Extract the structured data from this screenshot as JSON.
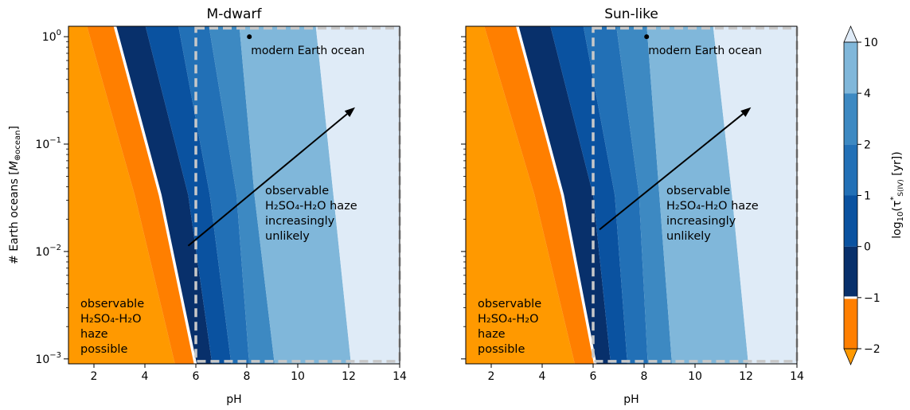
{
  "chart_data": {
    "type": "heatmap",
    "xlabel": "pH",
    "ylabel_main": "# Earth oceans [",
    "ylabel_sym": "M",
    "ylabel_sub": "⊕ocean",
    "ylabel_end": "]",
    "xlim": [
      1,
      14
    ],
    "ylim": [
      0.0009,
      1.25
    ],
    "y_scale": "log",
    "x_ticks": [
      2,
      4,
      6,
      8,
      10,
      12,
      14
    ],
    "y_ticks": [
      {
        "value": 1,
        "base": "10",
        "exp": "0"
      },
      {
        "value": 0.1,
        "base": "10",
        "exp": "−1"
      },
      {
        "value": 0.01,
        "base": "10",
        "exp": "−2"
      },
      {
        "value": 0.001,
        "base": "10",
        "exp": "−3"
      }
    ],
    "colorbar": {
      "label": "log₁₀(τ*S(IV) [yr])",
      "ticks": [
        "−2",
        "−1",
        "0",
        "1",
        "2",
        "4",
        "10"
      ],
      "levels": [
        {
          "from": "−2",
          "to": "−1",
          "color": "#ff7f00"
        },
        {
          "from": "−1",
          "to": "0",
          "color": "#08306b"
        },
        {
          "from": "0",
          "to": "1",
          "color": "#0a52a0"
        },
        {
          "from": "1",
          "to": "2",
          "color": "#2270b6"
        },
        {
          "from": "2",
          "to": "4",
          "color": "#3d89c2"
        },
        {
          "from": "4",
          "to": "10",
          "color": "#80b7da"
        }
      ],
      "extend_high_color": "#dfebf7",
      "extend_low_color": "#ff9900"
    },
    "panels": [
      {
        "title": "M-dwarf",
        "point": {
          "x": 8.1,
          "y": 1.0,
          "label": "modern Earth ocean"
        },
        "haze_note": [
          "observable",
          "H₂SO₄-H₂O",
          "haze",
          "possible"
        ],
        "arrow": {
          "from": [
            5.7,
            0.0113
          ],
          "to": [
            12.25,
            0.22
          ]
        },
        "arrow_note": [
          "observable",
          "H₂SO₄-H₂O haze",
          "increasingly",
          "unlikely"
        ],
        "dashed_box": {
          "x": [
            6.0,
            14.0
          ],
          "y": [
            0.00095,
            1.2
          ]
        },
        "band_colors": [
          "#ff9900",
          "#ff7f00",
          "#08306b",
          "#0a52a0",
          "#2270b6",
          "#3d89c2",
          "#80b7da",
          "#dfebf7"
        ],
        "boundaries": [
          {
            "x_top": 1.7,
            "x_mid": 3.6,
            "x_bottom": 5.2
          },
          {
            "x_top": 2.8,
            "x_mid": 4.6,
            "x_bottom": 6.0
          },
          {
            "x_top": 4.0,
            "x_mid": 5.7,
            "x_bottom": 6.65
          },
          {
            "x_top": 5.3,
            "x_mid": 6.55,
            "x_bottom": 7.4
          },
          {
            "x_top": 6.5,
            "x_mid": 7.6,
            "x_bottom": 8.1
          },
          {
            "x_top": 7.7,
            "x_mid": 8.3,
            "x_bottom": 9.1
          },
          {
            "x_top": 10.7,
            "x_mid": 11.4,
            "x_bottom": 12.1
          }
        ],
        "white_line_index": 1
      },
      {
        "title": "Sun-like",
        "point": {
          "x": 8.1,
          "y": 1.0,
          "label": "modern Earth ocean"
        },
        "haze_note": [
          "observable",
          "H₂SO₄-H₂O",
          "haze",
          "possible"
        ],
        "arrow": {
          "from": [
            6.25,
            0.016
          ],
          "to": [
            12.2,
            0.22
          ]
        },
        "arrow_note": [
          "observable",
          "H₂SO₄-H₂O haze",
          "increasingly",
          "unlikely"
        ],
        "dashed_box": {
          "x": [
            6.0,
            14.0
          ],
          "y": [
            0.00095,
            1.2
          ]
        },
        "band_colors": [
          "#ff9900",
          "#ff7f00",
          "#08306b",
          "#0a52a0",
          "#2270b6",
          "#3d89c2",
          "#80b7da",
          "#dfebf7"
        ],
        "boundaries": [
          {
            "x_top": 1.7,
            "x_mid": 3.7,
            "x_bottom": 5.3
          },
          {
            "x_top": 3.0,
            "x_mid": 4.8,
            "x_bottom": 6.1
          },
          {
            "x_top": 4.3,
            "x_mid": 6.0,
            "x_bottom": 6.7
          },
          {
            "x_top": 5.6,
            "x_mid": 6.85,
            "x_bottom": 7.35
          },
          {
            "x_top": 6.9,
            "x_mid": 7.8,
            "x_bottom": 8.15
          },
          {
            "x_top": 8.1,
            "x_mid": 8.6,
            "x_bottom": 9.1
          },
          {
            "x_top": 10.7,
            "x_mid": 11.45,
            "x_bottom": 12.1
          }
        ],
        "white_line_index": 1
      }
    ]
  }
}
